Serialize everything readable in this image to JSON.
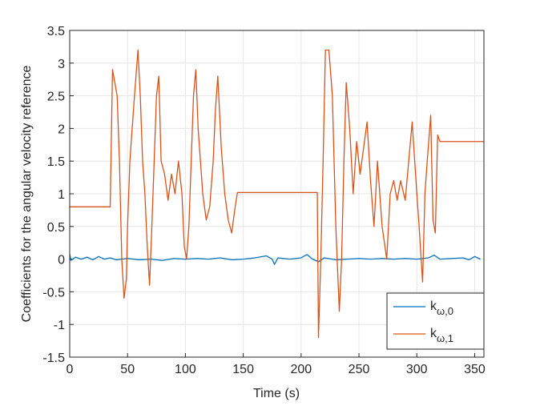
{
  "chart_data": {
    "type": "line",
    "xlabel": "Time (s)",
    "ylabel": "Coefficients for the angular velocity reference",
    "xlim": [
      0,
      358
    ],
    "ylim": [
      -1.5,
      3.5
    ],
    "xticks": [
      0,
      50,
      100,
      150,
      200,
      250,
      300,
      350
    ],
    "yticks": [
      -1.5,
      -1,
      -0.5,
      0,
      0.5,
      1,
      1.5,
      2,
      2.5,
      3,
      3.5
    ],
    "grid": true,
    "legend": "lower right",
    "series": [
      {
        "name": "k",
        "subscript": "ω,0",
        "color": "#0072bd",
        "x": [
          0,
          1,
          5,
          10,
          15,
          20,
          25,
          30,
          35,
          40,
          50,
          60,
          70,
          80,
          90,
          100,
          110,
          120,
          130,
          140,
          150,
          160,
          170,
          175,
          177,
          180,
          190,
          200,
          205,
          210,
          215,
          220,
          230,
          240,
          250,
          260,
          270,
          280,
          290,
          300,
          310,
          315,
          320,
          330,
          340,
          345,
          350,
          355
        ],
        "values": [
          0.08,
          -0.02,
          0.03,
          0.0,
          0.03,
          -0.01,
          0.04,
          0.0,
          0.02,
          -0.01,
          0.01,
          -0.01,
          0.0,
          -0.02,
          0.01,
          0.0,
          0.01,
          0.0,
          0.02,
          -0.01,
          0.0,
          0.02,
          0.05,
          0.0,
          -0.08,
          0.02,
          0.0,
          0.02,
          0.07,
          0.0,
          -0.04,
          0.02,
          -0.01,
          0.0,
          0.01,
          0.0,
          0.01,
          0.0,
          0.01,
          0.0,
          0.02,
          0.06,
          0.0,
          0.01,
          0.02,
          -0.01,
          0.04,
          0.0
        ]
      },
      {
        "name": "k",
        "subscript": "ω,1",
        "color": "#d95319",
        "x": [
          0,
          35,
          37,
          39,
          41,
          43,
          45,
          47,
          49,
          50,
          52,
          54,
          56,
          59,
          61,
          63,
          65,
          67,
          69,
          71,
          73,
          75,
          77,
          79,
          82,
          85,
          88,
          91,
          94,
          97,
          99,
          101,
          103,
          105,
          107,
          109,
          111,
          113,
          115,
          118,
          121,
          124,
          126,
          128,
          131,
          134,
          137,
          140,
          143,
          145,
          214,
          215,
          217,
          219,
          221,
          224,
          227,
          230,
          233,
          235,
          237,
          239,
          242,
          245,
          248,
          251,
          254,
          257,
          260,
          263,
          266,
          270,
          274,
          277,
          280,
          283,
          286,
          290,
          293,
          296,
          300,
          302,
          305,
          307,
          309,
          312,
          314,
          316,
          318,
          320,
          358
        ],
        "values": [
          0.8,
          0.8,
          2.9,
          2.7,
          2.5,
          1.5,
          0.0,
          -0.6,
          -0.3,
          0.5,
          1.5,
          2.0,
          2.5,
          3.2,
          2.5,
          1.5,
          1.0,
          0.2,
          -0.4,
          0.5,
          1.5,
          2.5,
          2.8,
          1.5,
          1.3,
          0.9,
          1.3,
          1.0,
          1.5,
          1.0,
          0.2,
          0.0,
          0.5,
          1.5,
          2.5,
          2.9,
          2.0,
          1.5,
          1.0,
          0.6,
          0.8,
          1.5,
          2.3,
          2.8,
          1.7,
          1.0,
          0.6,
          0.4,
          0.8,
          1.02,
          1.02,
          -1.2,
          0.0,
          1.5,
          3.2,
          3.2,
          2.5,
          0.5,
          -0.8,
          0.0,
          1.5,
          2.7,
          2.0,
          1.0,
          1.8,
          1.3,
          1.7,
          2.1,
          1.2,
          0.5,
          1.5,
          0.5,
          0.0,
          1.0,
          1.2,
          0.9,
          1.2,
          0.9,
          1.5,
          2.1,
          1.0,
          0.5,
          -0.35,
          1.0,
          1.5,
          2.2,
          0.6,
          0.4,
          1.9,
          1.8,
          1.8
        ]
      }
    ]
  }
}
